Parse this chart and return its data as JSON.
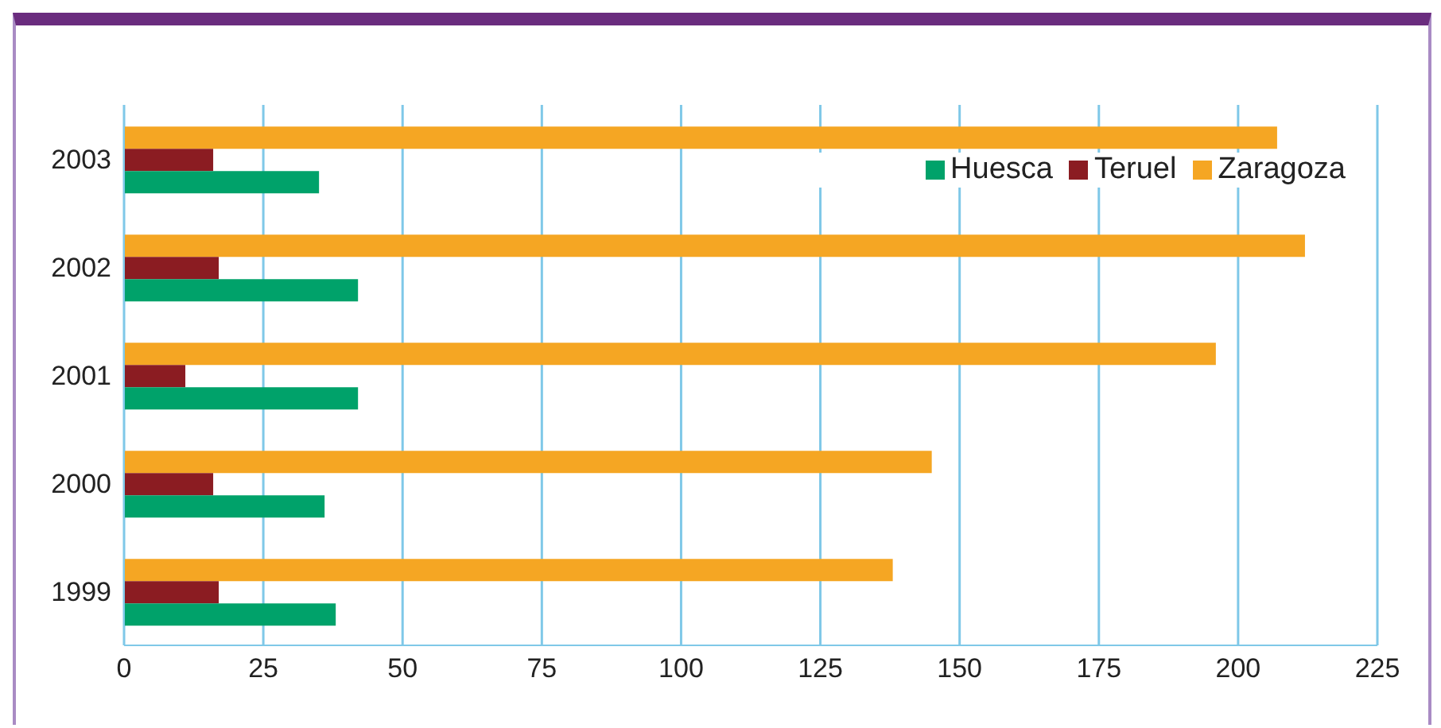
{
  "chart_data": {
    "type": "bar",
    "orientation": "horizontal",
    "categories": [
      "2003",
      "2002",
      "2001",
      "2000",
      "1999"
    ],
    "series": [
      {
        "name": "Huesca",
        "color": "#00a26a",
        "values": [
          35,
          42,
          42,
          36,
          38
        ]
      },
      {
        "name": "Teruel",
        "color": "#8b1c22",
        "values": [
          16,
          17,
          11,
          16,
          17
        ]
      },
      {
        "name": "Zaragoza",
        "color": "#f5a623",
        "values": [
          207,
          212,
          196,
          145,
          138
        ]
      }
    ],
    "xlim": [
      0,
      225
    ],
    "xticks": [
      0,
      25,
      50,
      75,
      100,
      125,
      150,
      175,
      200,
      225
    ],
    "grid": "x",
    "legend": "top right"
  }
}
